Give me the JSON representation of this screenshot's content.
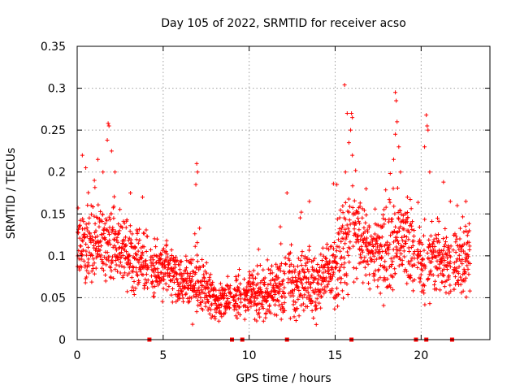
{
  "chart_data": {
    "type": "scatter",
    "title": "Day 105 of 2022, SRMTID for receiver acso",
    "xlabel": "GPS time / hours",
    "ylabel": "SRMTID / TECUs",
    "xlim": [
      0,
      24
    ],
    "ylim": [
      0,
      0.35
    ],
    "xticks": [
      0,
      5,
      10,
      15,
      20
    ],
    "xtick_labels": [
      "0",
      "5",
      "10",
      "15",
      "20"
    ],
    "yticks": [
      0,
      0.05,
      0.1,
      0.15,
      0.2,
      0.25,
      0.3,
      0.35
    ],
    "ytick_labels": [
      "0",
      "0.05",
      "0.1",
      "0.15",
      "0.2",
      "0.25",
      "0.3",
      "0.35"
    ],
    "grid": true,
    "marker": "+",
    "color": "#ff0000",
    "envelope": {
      "description": "typical SRMTID level vs hour, read from the scatter",
      "hours": [
        0,
        1,
        2,
        3,
        4,
        5,
        6,
        7,
        8,
        9,
        10,
        11,
        12,
        13,
        14,
        15,
        16,
        17,
        18,
        19,
        20,
        21,
        22,
        23
      ],
      "median": [
        0.11,
        0.12,
        0.12,
        0.1,
        0.09,
        0.085,
        0.075,
        0.07,
        0.045,
        0.05,
        0.055,
        0.055,
        0.065,
        0.07,
        0.065,
        0.09,
        0.13,
        0.1,
        0.11,
        0.12,
        0.09,
        0.09,
        0.09,
        0.095
      ],
      "spread": [
        0.035,
        0.04,
        0.04,
        0.035,
        0.03,
        0.03,
        0.03,
        0.035,
        0.02,
        0.02,
        0.025,
        0.025,
        0.035,
        0.035,
        0.03,
        0.04,
        0.05,
        0.035,
        0.05,
        0.045,
        0.04,
        0.035,
        0.035,
        0.03
      ]
    },
    "peaks": [
      {
        "x": 0.3,
        "y": 0.22
      },
      {
        "x": 0.5,
        "y": 0.205
      },
      {
        "x": 1.0,
        "y": 0.19
      },
      {
        "x": 1.2,
        "y": 0.215
      },
      {
        "x": 1.5,
        "y": 0.2
      },
      {
        "x": 1.8,
        "y": 0.258
      },
      {
        "x": 1.85,
        "y": 0.255
      },
      {
        "x": 1.75,
        "y": 0.238
      },
      {
        "x": 2.0,
        "y": 0.225
      },
      {
        "x": 2.2,
        "y": 0.2
      },
      {
        "x": 3.1,
        "y": 0.175
      },
      {
        "x": 3.8,
        "y": 0.17
      },
      {
        "x": 6.95,
        "y": 0.21
      },
      {
        "x": 7.0,
        "y": 0.2
      },
      {
        "x": 6.9,
        "y": 0.185
      },
      {
        "x": 12.2,
        "y": 0.175
      },
      {
        "x": 13.5,
        "y": 0.165
      },
      {
        "x": 14.9,
        "y": 0.186
      },
      {
        "x": 15.1,
        "y": 0.185
      },
      {
        "x": 15.55,
        "y": 0.304
      },
      {
        "x": 15.7,
        "y": 0.27
      },
      {
        "x": 15.95,
        "y": 0.27
      },
      {
        "x": 16.0,
        "y": 0.265
      },
      {
        "x": 15.9,
        "y": 0.25
      },
      {
        "x": 15.8,
        "y": 0.235
      },
      {
        "x": 16.0,
        "y": 0.22
      },
      {
        "x": 15.6,
        "y": 0.2
      },
      {
        "x": 16.8,
        "y": 0.18
      },
      {
        "x": 18.5,
        "y": 0.295
      },
      {
        "x": 18.55,
        "y": 0.285
      },
      {
        "x": 18.6,
        "y": 0.26
      },
      {
        "x": 18.5,
        "y": 0.245
      },
      {
        "x": 18.7,
        "y": 0.23
      },
      {
        "x": 18.4,
        "y": 0.215
      },
      {
        "x": 18.8,
        "y": 0.2
      },
      {
        "x": 19.2,
        "y": 0.17
      },
      {
        "x": 20.3,
        "y": 0.268
      },
      {
        "x": 20.35,
        "y": 0.255
      },
      {
        "x": 20.4,
        "y": 0.25
      },
      {
        "x": 20.2,
        "y": 0.23
      },
      {
        "x": 20.5,
        "y": 0.2
      },
      {
        "x": 21.3,
        "y": 0.188
      },
      {
        "x": 21.7,
        "y": 0.165
      },
      {
        "x": 22.6,
        "y": 0.165
      },
      {
        "x": 22.1,
        "y": 0.16
      }
    ],
    "gap_markers_x": [
      4.2,
      9.0,
      9.6,
      12.2,
      15.95,
      19.7,
      20.3,
      21.8
    ]
  }
}
